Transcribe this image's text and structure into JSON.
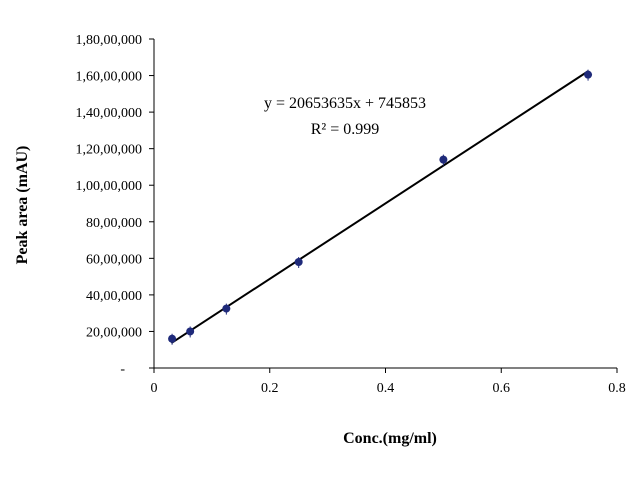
{
  "chart_data": {
    "type": "scatter",
    "xlabel": "Conc.(mg/ml)",
    "ylabel": "Peak area  (mAU)",
    "xlim": [
      0,
      0.8
    ],
    "ylim": [
      0,
      18000000
    ],
    "x_ticks": [
      0,
      0.2,
      0.4,
      0.6,
      0.8
    ],
    "x_tick_labels": [
      "0",
      "0.2",
      "0.4",
      "0.6",
      "0.8"
    ],
    "y_ticks": [
      0,
      2000000,
      4000000,
      6000000,
      8000000,
      10000000,
      12000000,
      14000000,
      16000000,
      18000000
    ],
    "y_tick_labels": [
      "-",
      "20,00,000",
      "40,00,000",
      "60,00,000",
      "80,00,000",
      "1,00,00,000",
      "1,20,00,000",
      "1,40,00,000",
      "1,60,00,000",
      "1,80,00,000"
    ],
    "grid": false,
    "legend": "none",
    "point_color": "#1f2a7a",
    "line_color": "#000000",
    "series": [
      {
        "x": [
          0.03125,
          0.0625,
          0.125,
          0.25,
          0.5,
          0.75
        ],
        "y": [
          1600000,
          2000000,
          3250000,
          5800000,
          11400000,
          16050000
        ]
      }
    ],
    "trendline": {
      "type": "linear",
      "slope": 20653635,
      "intercept": 745853,
      "x_range": [
        0.03,
        0.75
      ],
      "equation": "y = 20653635x + 745853",
      "r_squared": "R² = 0.999"
    }
  }
}
